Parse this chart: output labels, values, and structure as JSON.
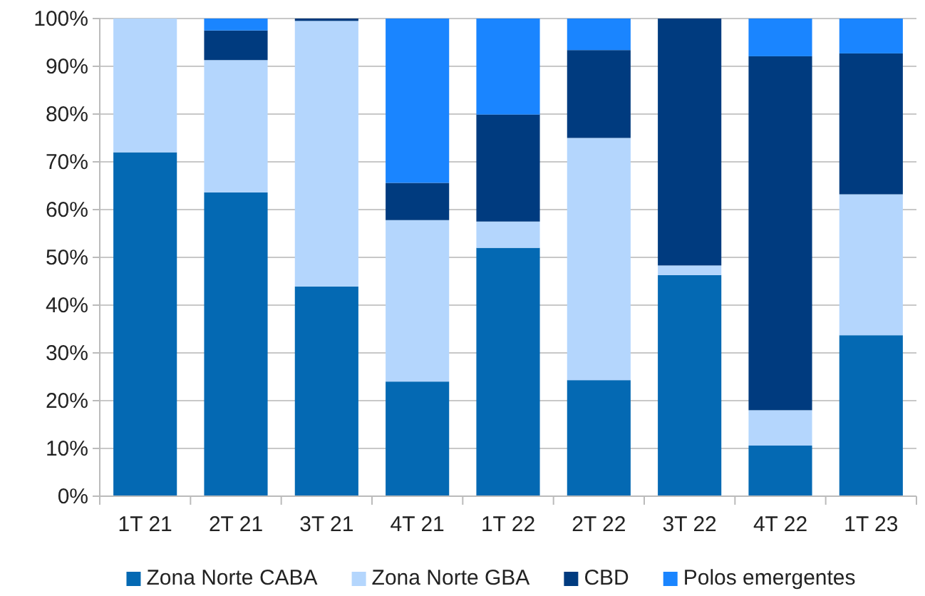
{
  "chart_data": {
    "type": "bar",
    "stacked": true,
    "categories": [
      "1T 21",
      "2T 21",
      "3T 21",
      "4T 21",
      "1T 22",
      "2T 22",
      "3T 22",
      "4T 22",
      "1T 23"
    ],
    "series": [
      {
        "name": "Zona Norte CABA",
        "color": "#0469b3",
        "values": [
          72.0,
          63.6,
          43.9,
          24.0,
          52.0,
          24.3,
          46.3,
          10.6,
          33.7
        ]
      },
      {
        "name": "Zona Norte GBA",
        "color": "#b4d6fd",
        "values": [
          28.0,
          27.7,
          55.6,
          33.8,
          5.5,
          50.7,
          2.0,
          7.4,
          29.5
        ]
      },
      {
        "name": "CBD",
        "color": "#003b7f",
        "values": [
          0,
          6.2,
          0.5,
          7.8,
          22.4,
          18.4,
          51.7,
          74.1,
          29.5
        ]
      },
      {
        "name": "Polos emergentes",
        "color": "#1a85ff",
        "values": [
          0,
          2.5,
          0,
          34.4,
          20.1,
          6.6,
          0,
          7.9,
          7.3
        ]
      }
    ],
    "ylim": [
      0,
      100
    ],
    "yticks": [
      {
        "value": 0,
        "label": "0%"
      },
      {
        "value": 10,
        "label": "10%"
      },
      {
        "value": 20,
        "label": "20%"
      },
      {
        "value": 30,
        "label": "30%"
      },
      {
        "value": 40,
        "label": "40%"
      },
      {
        "value": 50,
        "label": "50%"
      },
      {
        "value": 60,
        "label": "60%"
      },
      {
        "value": 70,
        "label": "70%"
      },
      {
        "value": 80,
        "label": "80%"
      },
      {
        "value": 90,
        "label": "90%"
      },
      {
        "value": 100,
        "label": "100%"
      }
    ],
    "grid": "y",
    "legend": "bottom"
  }
}
